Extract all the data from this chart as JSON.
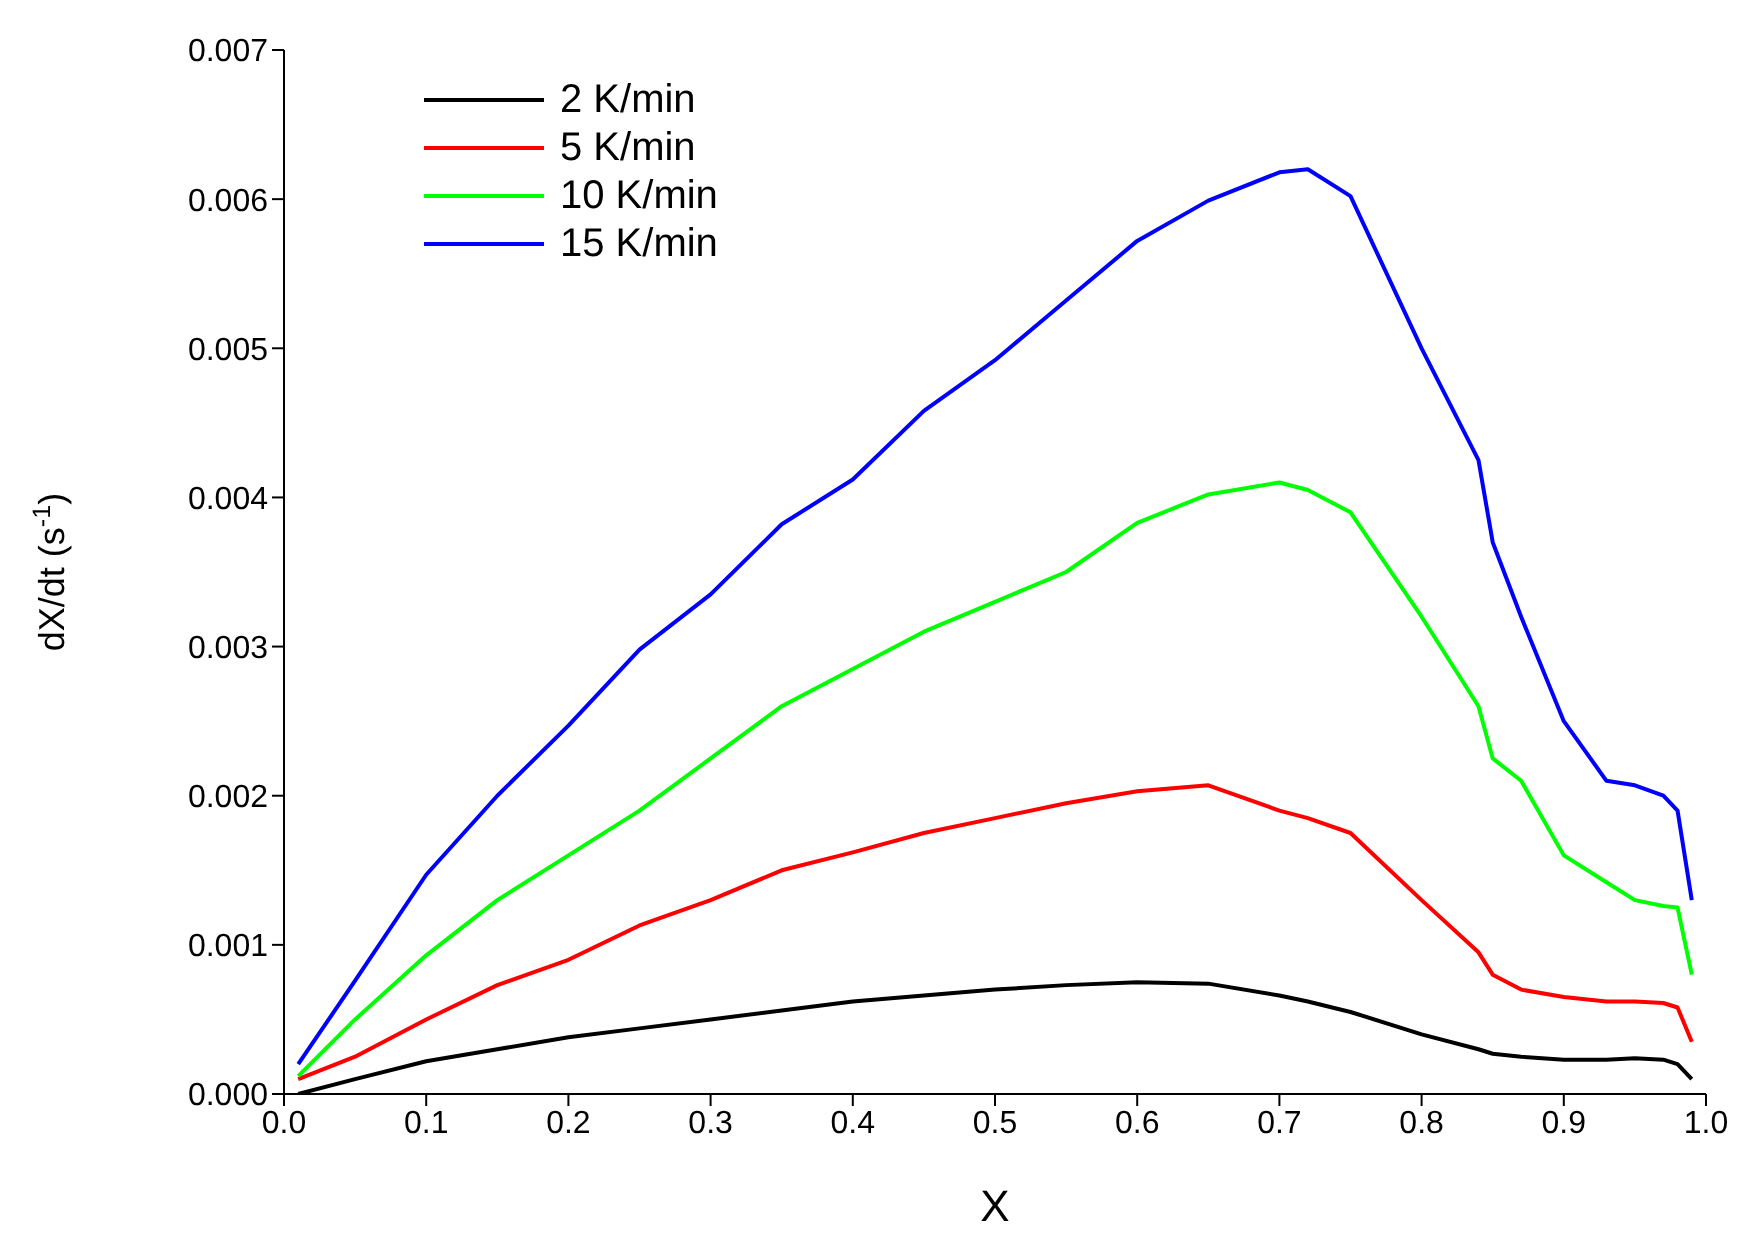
{
  "chart_data": {
    "type": "line",
    "xlabel": "X",
    "ylabel": "dX/dt (s$^{-1}$)",
    "x": [
      0.01,
      0.05,
      0.1,
      0.15,
      0.2,
      0.25,
      0.3,
      0.35,
      0.4,
      0.45,
      0.5,
      0.55,
      0.6,
      0.65,
      0.7,
      0.72,
      0.75,
      0.8,
      0.84,
      0.85,
      0.87,
      0.9,
      0.93,
      0.95,
      0.97,
      0.98,
      0.99
    ],
    "series": [
      {
        "name": "2 K/min",
        "color": "#000000",
        "values": [
          0,
          0.0001,
          0.00022,
          0.0003,
          0.00038,
          0.00044,
          0.0005,
          0.00056,
          0.00062,
          0.00066,
          0.0007,
          0.00073,
          0.00075,
          0.00074,
          0.00066,
          0.00062,
          0.00055,
          0.0004,
          0.0003,
          0.00027,
          0.00025,
          0.00023,
          0.00023,
          0.00024,
          0.00023,
          0.0002,
          0.0001
        ]
      },
      {
        "name": "5 K/min",
        "color": "#ff0000",
        "values": [
          0.0001,
          0.00025,
          0.0005,
          0.00073,
          0.0009,
          0.00113,
          0.0013,
          0.0015,
          0.00162,
          0.00175,
          0.00185,
          0.00195,
          0.00203,
          0.00207,
          0.0019,
          0.00185,
          0.00175,
          0.0013,
          0.00095,
          0.0008,
          0.0007,
          0.00065,
          0.00062,
          0.00062,
          0.00061,
          0.00058,
          0.00035
        ]
      },
      {
        "name": "10 K/min",
        "color": "#00ff00",
        "values": [
          0.00012,
          0.0005,
          0.00093,
          0.0013,
          0.0016,
          0.0019,
          0.00225,
          0.0026,
          0.00285,
          0.0031,
          0.0033,
          0.0035,
          0.00383,
          0.00402,
          0.0041,
          0.00405,
          0.0039,
          0.0032,
          0.0026,
          0.00225,
          0.0021,
          0.0016,
          0.00142,
          0.0013,
          0.00126,
          0.00125,
          0.0008
        ]
      },
      {
        "name": "15 K/min",
        "color": "#0000ff",
        "values": [
          0.0002,
          0.00076,
          0.00147,
          0.002,
          0.00247,
          0.00298,
          0.00335,
          0.00382,
          0.00412,
          0.00458,
          0.00492,
          0.00532,
          0.00572,
          0.00599,
          0.00618,
          0.0062,
          0.00602,
          0.005,
          0.00425,
          0.0037,
          0.0032,
          0.0025,
          0.0021,
          0.00207,
          0.002,
          0.0019,
          0.0013
        ]
      }
    ],
    "xlim": [
      0,
      1
    ],
    "ylim": [
      0,
      0.007
    ],
    "xticks": [
      {
        "value": 0,
        "label": "0.0"
      },
      0.1,
      0.2,
      0.3,
      0.4,
      0.5,
      0.6,
      0.7,
      0.8,
      0.9,
      {
        "value": 1,
        "label": "1.0"
      }
    ],
    "yticks": [
      {
        "value": 0,
        "label": "0.000"
      },
      {
        "value": 0.001,
        "label": "0.001"
      },
      {
        "value": 0.002,
        "label": "0.002"
      },
      {
        "value": 0.003,
        "label": "0.003"
      },
      {
        "value": 0.004,
        "label": "0.004"
      },
      {
        "value": 0.005,
        "label": "0.005"
      },
      {
        "value": 0.006,
        "label": "0.006"
      },
      {
        "value": 0.007,
        "label": "0.007"
      }
    ],
    "legend": "top left",
    "marker": "none",
    "line_style": "solid"
  }
}
